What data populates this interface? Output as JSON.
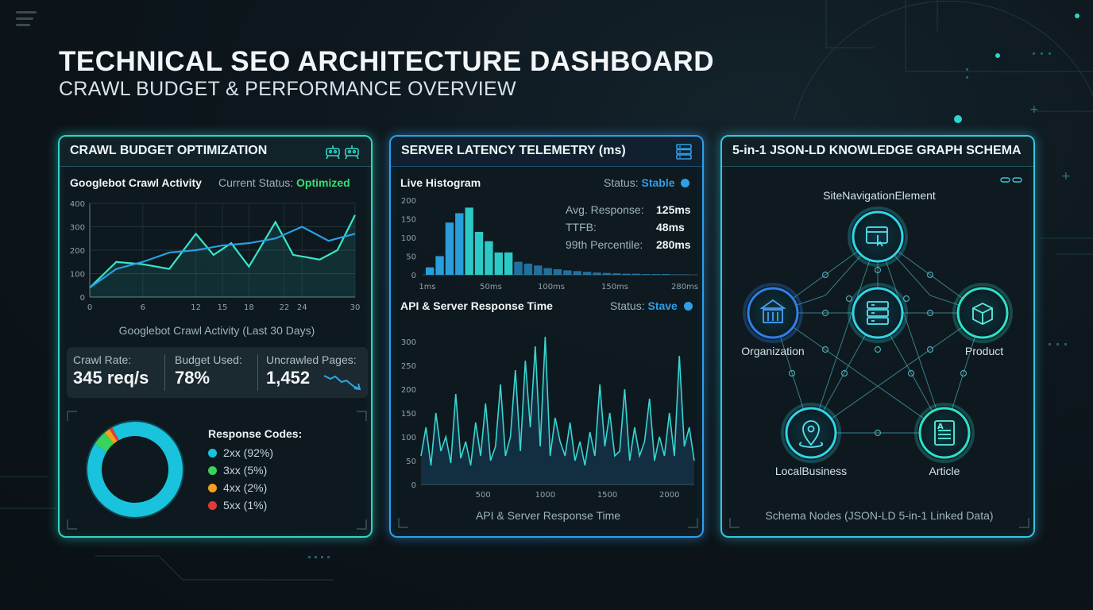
{
  "header": {
    "title": "TECHNICAL SEO ARCHITECTURE DASHBOARD",
    "subtitle": "CRAWL BUDGET & PERFORMANCE OVERVIEW"
  },
  "crawl_panel": {
    "title": "CRAWL BUDGET OPTIMIZATION",
    "section_label": "Googlebot Crawl Activity",
    "status_label": "Current Status:",
    "status_value": "Optimized",
    "chart_caption": "Googlebot Crawl Activity (Last 30 Days)",
    "stats": [
      {
        "label": "Crawl Rate:",
        "value": "345 req/s"
      },
      {
        "label": "Budget Used:",
        "value": "78%"
      },
      {
        "label": "Uncrawled Pages:",
        "value": "1,452"
      }
    ],
    "legend_title": "Response Codes:",
    "legend": [
      {
        "label": "2xx (92%)",
        "color": "#19c3dd"
      },
      {
        "label": "3xx (5%)",
        "color": "#37d35a"
      },
      {
        "label": "4xx (2%)",
        "color": "#f2a01d"
      },
      {
        "label": "5xx (1%)",
        "color": "#e03a3a"
      }
    ]
  },
  "latency_panel": {
    "title": "SERVER LATENCY TELEMETRY (ms)",
    "histogram_label": "Live Histogram",
    "status_label": "Status:",
    "histogram_status": "Stable",
    "metrics": [
      {
        "label": "Avg. Response:",
        "value": "125ms"
      },
      {
        "label": "TTFB:",
        "value": "48ms"
      },
      {
        "label": "99th Percentile:",
        "value": "280ms"
      }
    ],
    "response_label": "API & Server Response Time",
    "response_status": "Stave",
    "response_caption": "API & Server Response Time"
  },
  "schema_panel": {
    "title": "5-in-1 JSON-LD KNOWLEDGE GRAPH SCHEMA",
    "nodes": {
      "top": "SiteNavigationElement",
      "left": "Organization",
      "right": "Product",
      "bottom_left": "LocalBusiness",
      "bottom_right": "Article"
    },
    "caption": "Schema Nodes (JSON-LD 5-in-1 Linked Data)"
  },
  "chart_data": [
    {
      "type": "line",
      "title": "Googlebot Crawl Activity",
      "xlabel": "Googlebot Crawl Activity (Last 30 Days)",
      "ylabel": "",
      "xlim": [
        0,
        30
      ],
      "ylim": [
        0,
        400
      ],
      "x_ticks": [
        0,
        6,
        12,
        15,
        18,
        22,
        24,
        30
      ],
      "y_ticks": [
        0,
        100,
        200,
        300,
        400
      ],
      "series": [
        {
          "name": "",
          "x": [
            0,
            3,
            6,
            9,
            12,
            14,
            16,
            18,
            21,
            23,
            26,
            28,
            30
          ],
          "y": [
            40,
            150,
            140,
            120,
            270,
            180,
            230,
            130,
            320,
            180,
            160,
            200,
            350
          ]
        },
        {
          "name": "",
          "x": [
            0,
            3,
            6,
            9,
            12,
            15,
            18,
            21,
            24,
            27,
            30
          ],
          "y": [
            40,
            120,
            150,
            190,
            200,
            220,
            230,
            250,
            300,
            240,
            270
          ]
        }
      ],
      "grid": true
    },
    {
      "type": "bar",
      "title": "Live Histogram",
      "x_tick_labels": [
        "1ms",
        "50ms",
        "100ms",
        "150ms",
        "280ms"
      ],
      "y_ticks": [
        0,
        50,
        100,
        150,
        200
      ],
      "ylim": [
        0,
        200
      ],
      "values": [
        20,
        50,
        140,
        165,
        180,
        115,
        90,
        60,
        60,
        35,
        30,
        25,
        18,
        15,
        12,
        10,
        8,
        6,
        5,
        4,
        3,
        3,
        2,
        2,
        2,
        1,
        1
      ]
    },
    {
      "type": "line",
      "title": "API & Server Response Time",
      "xlabel": "API & Server Response Time",
      "xlim": [
        0,
        2200
      ],
      "ylim": [
        0,
        320
      ],
      "x_ticks": [
        500,
        1000,
        1500,
        2000
      ],
      "y_ticks": [
        0,
        50,
        100,
        150,
        200,
        250,
        300
      ],
      "series": [
        {
          "name": "",
          "x": [
            0,
            40,
            80,
            120,
            160,
            200,
            240,
            280,
            320,
            360,
            400,
            440,
            480,
            520,
            560,
            600,
            640,
            680,
            720,
            760,
            800,
            840,
            880,
            920,
            960,
            1000,
            1040,
            1080,
            1120,
            1160,
            1200,
            1240,
            1280,
            1320,
            1360,
            1400,
            1440,
            1480,
            1520,
            1560,
            1600,
            1640,
            1680,
            1720,
            1760,
            1800,
            1840,
            1880,
            1920,
            1960,
            2000,
            2040,
            2080,
            2120,
            2160,
            2200
          ],
          "y": [
            60,
            120,
            40,
            150,
            70,
            100,
            45,
            190,
            55,
            90,
            40,
            130,
            60,
            170,
            50,
            80,
            210,
            60,
            100,
            240,
            70,
            260,
            120,
            290,
            80,
            310,
            60,
            140,
            90,
            60,
            130,
            50,
            90,
            40,
            110,
            60,
            210,
            80,
            150,
            60,
            70,
            200,
            50,
            120,
            60,
            90,
            180,
            50,
            100,
            60,
            150,
            60,
            270,
            80,
            120,
            50
          ]
        }
      ]
    },
    {
      "type": "pie",
      "title": "Response Codes:",
      "categories": [
        "2xx",
        "3xx",
        "4xx",
        "5xx"
      ],
      "values": [
        92,
        5,
        2,
        1
      ]
    }
  ]
}
